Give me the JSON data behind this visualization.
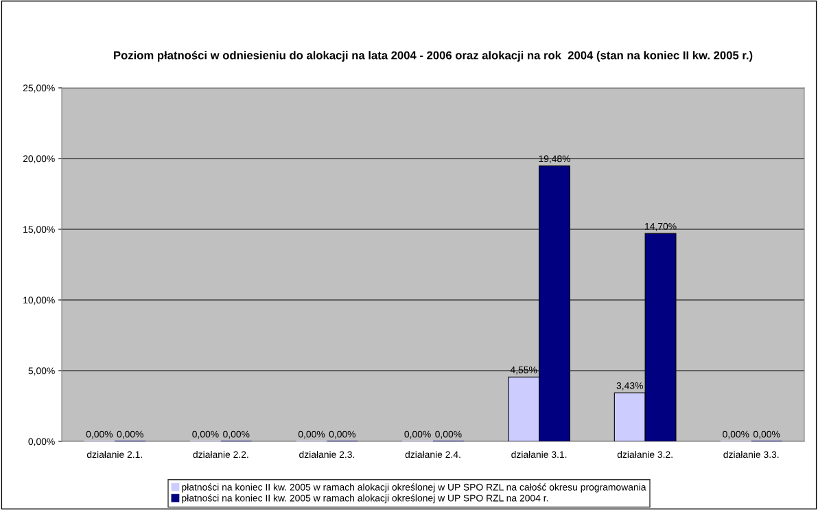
{
  "chart_data": {
    "type": "bar",
    "title": "Poziom płatności w odniesieniu do alokacji na lata 2004 - 2006 oraz alokacji na rok  2004 (stan na koniec II kw. 2005 r.)",
    "categories": [
      "działanie 2.1.",
      "działanie 2.2.",
      "działanie 2.3.",
      "działanie 2.4.",
      "działanie 3.1.",
      "działanie 3.2.",
      "działanie 3.3."
    ],
    "series": [
      {
        "name": "płatności na koniec II kw. 2005 w ramach alokacji określonej w UP SPO RZL na całość okresu programowania",
        "color": "#ccccff",
        "values": [
          0,
          0,
          0,
          0,
          4.55,
          3.43,
          0
        ],
        "value_labels": [
          "0,00%",
          "0,00%",
          "0,00%",
          "0,00%",
          "4,55%",
          "3,43%",
          "0,00%"
        ]
      },
      {
        "name": "płatności na koniec II kw. 2005 w ramach alokacji określonej w UP SPO RZL na 2004 r.",
        "color": "#000080",
        "values": [
          0,
          0,
          0,
          0,
          19.48,
          14.7,
          0
        ],
        "value_labels": [
          "0,00%",
          "0,00%",
          "0,00%",
          "0,00%",
          "19,48%",
          "14,70%",
          "0,00%"
        ]
      }
    ],
    "ylim": [
      0,
      25
    ],
    "yticks": [
      {
        "value": 0,
        "label": "0,00%"
      },
      {
        "value": 5,
        "label": "5,00%"
      },
      {
        "value": 10,
        "label": "10,00%"
      },
      {
        "value": 15,
        "label": "15,00%"
      },
      {
        "value": 20,
        "label": "20,00%"
      },
      {
        "value": 25,
        "label": "25,00%"
      }
    ],
    "grid": "y",
    "legend": "bottom"
  }
}
